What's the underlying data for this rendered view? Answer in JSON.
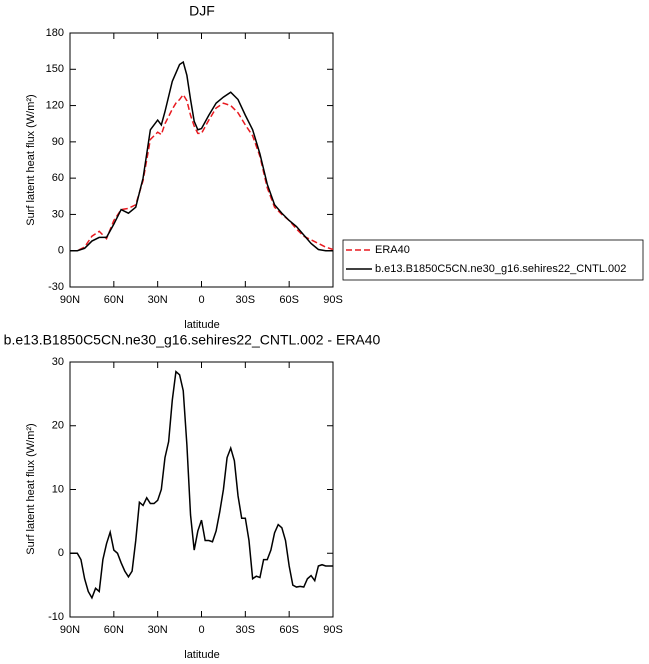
{
  "chart_data": [
    {
      "type": "line",
      "title": "DJF",
      "xlabel": "latitude",
      "ylabel": "Surf latent heat flux (W/m²)",
      "xlim": [
        90,
        -90
      ],
      "xticks": [
        {
          "value": 90,
          "label": "90N"
        },
        {
          "value": 60,
          "label": "60N"
        },
        {
          "value": 30,
          "label": "30N"
        },
        0,
        {
          "value": -30,
          "label": "30S"
        },
        {
          "value": -60,
          "label": "60S"
        },
        {
          "value": -90,
          "label": "90S"
        }
      ],
      "ylim": [
        -30,
        180
      ],
      "yticks": [
        -30,
        0,
        30,
        60,
        90,
        120,
        150,
        180
      ],
      "legend_position": "right",
      "x": [
        90,
        85,
        80,
        75,
        70,
        65,
        60,
        55,
        50,
        45,
        40,
        35,
        30,
        27.5,
        25,
        20,
        17.5,
        15,
        12.5,
        10,
        7.5,
        5,
        2.5,
        0,
        -5,
        -10,
        -15,
        -20,
        -25,
        -30,
        -35,
        -40,
        -45,
        -50,
        -55,
        -60,
        -65,
        -70,
        -75,
        -80,
        -85,
        -90
      ],
      "series": [
        {
          "name": "ERA40",
          "color": "#e8191f",
          "dash": "dashed",
          "values": [
            0,
            0,
            3,
            12,
            16,
            10,
            25,
            34,
            35,
            38,
            58,
            92,
            98,
            96,
            105,
            117,
            122,
            125,
            129,
            124,
            112,
            103,
            97,
            97,
            108,
            118,
            122,
            120,
            114,
            104,
            95,
            78,
            52,
            36,
            30,
            25,
            18,
            12,
            9,
            6,
            3,
            1
          ]
        },
        {
          "name": "b.e13.B1850C5CN.ne30_g16.sehires22_CNTL.002",
          "color": "#000000",
          "dash": "solid",
          "values": [
            0,
            0,
            2,
            8,
            11,
            11,
            22,
            34,
            31,
            36,
            60,
            100,
            108,
            104,
            115,
            140,
            147,
            154,
            156,
            145,
            125,
            107,
            100,
            101,
            112,
            122,
            127,
            131,
            125,
            112,
            100,
            80,
            55,
            38,
            31,
            25,
            20,
            13,
            6,
            1,
            0,
            0
          ]
        }
      ]
    },
    {
      "type": "line",
      "title": "b.e13.B1850C5CN.ne30_g16.sehires22_CNTL.002 - ERA40",
      "xlabel": "latitude",
      "ylabel": "Surf latent heat flux (W/m²)",
      "xlim": [
        90,
        -90
      ],
      "xticks": [
        {
          "value": 90,
          "label": "90N"
        },
        {
          "value": 60,
          "label": "60N"
        },
        {
          "value": 30,
          "label": "30N"
        },
        0,
        {
          "value": -30,
          "label": "30S"
        },
        {
          "value": -60,
          "label": "60S"
        },
        {
          "value": -90,
          "label": "90S"
        }
      ],
      "ylim": [
        -10,
        30
      ],
      "yticks": [
        -10,
        0,
        10,
        20,
        30
      ],
      "color": "#000000",
      "x": [
        90,
        87.5,
        85,
        82.5,
        80,
        77.5,
        75,
        72.5,
        70,
        67.5,
        65,
        62.5,
        60,
        57.5,
        55,
        52.5,
        50,
        47.5,
        45,
        42.5,
        40,
        37.5,
        35,
        32.5,
        30,
        27.5,
        25,
        22.5,
        20,
        17.5,
        15,
        12.5,
        10,
        7.5,
        5,
        2.5,
        0,
        -2.5,
        -5,
        -7.5,
        -10,
        -12.5,
        -15,
        -17.5,
        -20,
        -22.5,
        -25,
        -27.5,
        -30,
        -32.5,
        -35,
        -37.5,
        -40,
        -42.5,
        -45,
        -47.5,
        -50,
        -52.5,
        -55,
        -57.5,
        -60,
        -62.5,
        -65,
        -67.5,
        -70,
        -72.5,
        -75,
        -77.5,
        -80,
        -82.5,
        -85,
        -87.5,
        -90
      ],
      "values": [
        0,
        0,
        0,
        -1,
        -4,
        -6,
        -7,
        -5.5,
        -6,
        -1,
        1.5,
        3.3,
        0.5,
        0,
        -1.5,
        -2.8,
        -3.7,
        -2.8,
        2,
        8,
        7.5,
        8.7,
        7.8,
        7.8,
        8.3,
        10,
        15,
        17.5,
        24,
        28.5,
        28,
        25.5,
        17,
        6,
        0.5,
        3.5,
        5.2,
        2,
        2,
        1.8,
        3.5,
        6.5,
        10,
        15,
        16.5,
        14.5,
        9,
        5.5,
        5.5,
        2,
        -4,
        -3.6,
        -3.8,
        -1,
        -1,
        0.5,
        3.2,
        4.5,
        4,
        2,
        -2,
        -5,
        -5.3,
        -5.2,
        -5.3,
        -4,
        -3.5,
        -4.3,
        -2,
        -1.8,
        -2,
        -2,
        -2
      ]
    }
  ]
}
